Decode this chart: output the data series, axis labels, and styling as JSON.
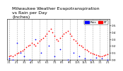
{
  "title": "Milwaukee Weather Evapotranspiration\nvs Rain per Day\n(Inches)",
  "title_fontsize": 4.5,
  "legend_labels": [
    "Rain",
    "ET"
  ],
  "legend_colors": [
    "#0000ff",
    "#ff0000"
  ],
  "background_color": "#ffffff",
  "grid_color": "#aaaaaa",
  "ylim": [
    0,
    0.6
  ],
  "yticks": [
    0.0,
    0.1,
    0.2,
    0.3,
    0.4,
    0.5
  ],
  "red_x": [
    1,
    2,
    3,
    4,
    5,
    6,
    7,
    8,
    9,
    10,
    11,
    12,
    13,
    14,
    15,
    16,
    17,
    18,
    19,
    20,
    21,
    22,
    23,
    24,
    25,
    26,
    27,
    28,
    29,
    30,
    31,
    32,
    33,
    34,
    35,
    36,
    37,
    38,
    39,
    40,
    41,
    42,
    43,
    44,
    45,
    46,
    47,
    48,
    49,
    50,
    51,
    52,
    53
  ],
  "red_y": [
    0.05,
    0.06,
    0.05,
    0.07,
    0.09,
    0.1,
    0.12,
    0.13,
    0.15,
    0.18,
    0.2,
    0.22,
    0.25,
    0.23,
    0.2,
    0.25,
    0.28,
    0.3,
    0.32,
    0.35,
    0.38,
    0.42,
    0.45,
    0.4,
    0.35,
    0.3,
    0.28,
    0.32,
    0.35,
    0.38,
    0.4,
    0.42,
    0.38,
    0.35,
    0.3,
    0.28,
    0.25,
    0.22,
    0.2,
    0.18,
    0.15,
    0.14,
    0.12,
    0.1,
    0.09,
    0.08,
    0.07,
    0.06,
    0.05,
    0.05,
    0.06,
    0.07,
    0.08
  ],
  "blue_x": [
    1,
    3,
    5,
    7,
    9,
    12,
    15,
    18,
    22,
    25,
    28,
    32,
    35,
    38,
    41,
    44,
    47,
    50,
    53
  ],
  "blue_y": [
    0.02,
    0.0,
    0.25,
    0.1,
    0.05,
    0.0,
    0.3,
    0.1,
    0.2,
    0.05,
    0.15,
    0.0,
    0.1,
    0.05,
    0.02,
    0.0,
    0.03,
    0.02,
    0.0
  ],
  "xtick_positions": [
    1,
    5,
    9,
    13,
    17,
    21,
    25,
    29,
    33,
    37,
    41,
    45,
    49,
    53
  ],
  "xtick_labels": [
    "1/1",
    "2/1",
    "3/1",
    "4/1",
    "5/1",
    "6/1",
    "7/1",
    "8/1",
    "9/1",
    "10/1",
    "11/1",
    "12/1",
    "1/1",
    "2/1"
  ]
}
